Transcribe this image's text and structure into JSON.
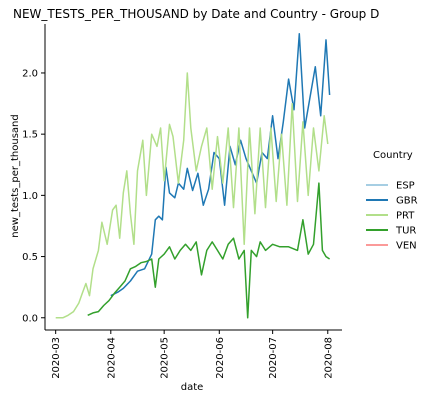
{
  "chart_data": {
    "type": "line",
    "title": "NEW_TESTS_PER_THOUSAND by Date and Country - Group D",
    "xlabel": "date",
    "ylabel": "new_tests_per_thousand",
    "ylim": [
      -0.1,
      2.4
    ],
    "y_ticks": [
      0.0,
      0.5,
      1.0,
      1.5,
      2.0
    ],
    "y_tick_labels": [
      "0.0",
      "0.5",
      "1.0",
      "1.5",
      "2.0"
    ],
    "xlim": [
      "2020-02-24",
      "2020-08-09"
    ],
    "x_ticks": [
      "2020-03-01",
      "2020-04-01",
      "2020-05-01",
      "2020-06-01",
      "2020-07-01",
      "2020-08-01"
    ],
    "x_tick_labels": [
      "2020-03",
      "2020-04",
      "2020-05",
      "2020-06",
      "2020-07",
      "2020-08"
    ],
    "grid": false,
    "legend": {
      "title": "Country",
      "placement": "right"
    },
    "series": [
      {
        "name": "ESP",
        "color": "#a6cee3",
        "points": []
      },
      {
        "name": "GBR",
        "color": "#1f78b4",
        "points": [
          [
            "2020-04-01",
            0.18
          ],
          [
            "2020-04-05",
            0.21
          ],
          [
            "2020-04-08",
            0.24
          ],
          [
            "2020-04-12",
            0.3
          ],
          [
            "2020-04-16",
            0.38
          ],
          [
            "2020-04-20",
            0.4
          ],
          [
            "2020-04-24",
            0.52
          ],
          [
            "2020-04-26",
            0.8
          ],
          [
            "2020-04-28",
            0.83
          ],
          [
            "2020-04-30",
            0.8
          ],
          [
            "2020-05-02",
            1.23
          ],
          [
            "2020-05-04",
            1.02
          ],
          [
            "2020-05-07",
            0.98
          ],
          [
            "2020-05-09",
            1.1
          ],
          [
            "2020-05-12",
            1.05
          ],
          [
            "2020-05-14",
            1.22
          ],
          [
            "2020-05-17",
            1.04
          ],
          [
            "2020-05-20",
            1.18
          ],
          [
            "2020-05-23",
            0.92
          ],
          [
            "2020-05-26",
            1.05
          ],
          [
            "2020-05-29",
            1.35
          ],
          [
            "2020-06-01",
            1.3
          ],
          [
            "2020-06-04",
            0.92
          ],
          [
            "2020-06-07",
            1.4
          ],
          [
            "2020-06-10",
            1.25
          ],
          [
            "2020-06-13",
            1.45
          ],
          [
            "2020-06-16",
            1.3
          ],
          [
            "2020-06-19",
            1.2
          ],
          [
            "2020-06-22",
            1.1
          ],
          [
            "2020-06-25",
            1.35
          ],
          [
            "2020-06-28",
            1.3
          ],
          [
            "2020-07-01",
            1.65
          ],
          [
            "2020-07-04",
            1.3
          ],
          [
            "2020-07-07",
            1.6
          ],
          [
            "2020-07-10",
            1.95
          ],
          [
            "2020-07-13",
            1.7
          ],
          [
            "2020-07-16",
            2.32
          ],
          [
            "2020-07-19",
            1.55
          ],
          [
            "2020-07-22",
            1.8
          ],
          [
            "2020-07-25",
            2.05
          ],
          [
            "2020-07-28",
            1.65
          ],
          [
            "2020-07-31",
            2.27
          ],
          [
            "2020-08-02",
            1.82
          ]
        ]
      },
      {
        "name": "PRT",
        "color": "#b2df8a",
        "points": [
          [
            "2020-03-01",
            0.0
          ],
          [
            "2020-03-05",
            0.0
          ],
          [
            "2020-03-08",
            0.02
          ],
          [
            "2020-03-11",
            0.05
          ],
          [
            "2020-03-14",
            0.12
          ],
          [
            "2020-03-16",
            0.2
          ],
          [
            "2020-03-18",
            0.28
          ],
          [
            "2020-03-20",
            0.18
          ],
          [
            "2020-03-22",
            0.4
          ],
          [
            "2020-03-25",
            0.55
          ],
          [
            "2020-03-27",
            0.78
          ],
          [
            "2020-03-30",
            0.6
          ],
          [
            "2020-04-02",
            0.88
          ],
          [
            "2020-04-04",
            0.92
          ],
          [
            "2020-04-06",
            0.65
          ],
          [
            "2020-04-08",
            1.02
          ],
          [
            "2020-04-10",
            1.2
          ],
          [
            "2020-04-12",
            0.85
          ],
          [
            "2020-04-14",
            0.6
          ],
          [
            "2020-04-16",
            1.2
          ],
          [
            "2020-04-19",
            1.45
          ],
          [
            "2020-04-21",
            1.0
          ],
          [
            "2020-04-24",
            1.5
          ],
          [
            "2020-04-27",
            1.4
          ],
          [
            "2020-04-29",
            1.55
          ],
          [
            "2020-05-01",
            1.12
          ],
          [
            "2020-05-04",
            1.58
          ],
          [
            "2020-05-06",
            1.48
          ],
          [
            "2020-05-09",
            1.1
          ],
          [
            "2020-05-12",
            1.45
          ],
          [
            "2020-05-14",
            2.0
          ],
          [
            "2020-05-16",
            1.55
          ],
          [
            "2020-05-19",
            1.2
          ],
          [
            "2020-05-22",
            1.4
          ],
          [
            "2020-05-25",
            1.55
          ],
          [
            "2020-05-28",
            1.05
          ],
          [
            "2020-05-31",
            1.48
          ],
          [
            "2020-06-03",
            1.1
          ],
          [
            "2020-06-06",
            1.55
          ],
          [
            "2020-06-09",
            0.9
          ],
          [
            "2020-06-12",
            1.55
          ],
          [
            "2020-06-15",
            0.6
          ],
          [
            "2020-06-18",
            1.55
          ],
          [
            "2020-06-21",
            0.85
          ],
          [
            "2020-06-24",
            1.55
          ],
          [
            "2020-06-27",
            0.9
          ],
          [
            "2020-06-30",
            1.55
          ],
          [
            "2020-07-03",
            0.95
          ],
          [
            "2020-07-06",
            1.5
          ],
          [
            "2020-07-09",
            0.92
          ],
          [
            "2020-07-12",
            1.75
          ],
          [
            "2020-07-15",
            0.95
          ],
          [
            "2020-07-18",
            1.6
          ],
          [
            "2020-07-21",
            1.0
          ],
          [
            "2020-07-24",
            1.55
          ],
          [
            "2020-07-27",
            1.2
          ],
          [
            "2020-07-30",
            1.65
          ],
          [
            "2020-08-01",
            1.42
          ]
        ]
      },
      {
        "name": "TUR",
        "color": "#33a02c",
        "points": [
          [
            "2020-03-19",
            0.02
          ],
          [
            "2020-03-22",
            0.04
          ],
          [
            "2020-03-25",
            0.05
          ],
          [
            "2020-03-28",
            0.1
          ],
          [
            "2020-03-31",
            0.14
          ],
          [
            "2020-04-03",
            0.2
          ],
          [
            "2020-04-06",
            0.25
          ],
          [
            "2020-04-09",
            0.3
          ],
          [
            "2020-04-12",
            0.4
          ],
          [
            "2020-04-15",
            0.42
          ],
          [
            "2020-04-18",
            0.45
          ],
          [
            "2020-04-21",
            0.46
          ],
          [
            "2020-04-24",
            0.48
          ],
          [
            "2020-04-26",
            0.25
          ],
          [
            "2020-04-28",
            0.48
          ],
          [
            "2020-05-01",
            0.52
          ],
          [
            "2020-05-04",
            0.58
          ],
          [
            "2020-05-07",
            0.48
          ],
          [
            "2020-05-10",
            0.55
          ],
          [
            "2020-05-13",
            0.6
          ],
          [
            "2020-05-16",
            0.55
          ],
          [
            "2020-05-19",
            0.62
          ],
          [
            "2020-05-22",
            0.35
          ],
          [
            "2020-05-25",
            0.55
          ],
          [
            "2020-05-28",
            0.62
          ],
          [
            "2020-05-31",
            0.55
          ],
          [
            "2020-06-03",
            0.48
          ],
          [
            "2020-06-06",
            0.6
          ],
          [
            "2020-06-09",
            0.65
          ],
          [
            "2020-06-12",
            0.48
          ],
          [
            "2020-06-15",
            0.55
          ],
          [
            "2020-06-17",
            0.0
          ],
          [
            "2020-06-19",
            0.55
          ],
          [
            "2020-06-22",
            0.5
          ],
          [
            "2020-06-24",
            0.62
          ],
          [
            "2020-06-27",
            0.55
          ],
          [
            "2020-07-01",
            0.6
          ],
          [
            "2020-07-05",
            0.58
          ],
          [
            "2020-07-10",
            0.58
          ],
          [
            "2020-07-15",
            0.55
          ],
          [
            "2020-07-18",
            0.8
          ],
          [
            "2020-07-21",
            0.52
          ],
          [
            "2020-07-24",
            0.6
          ],
          [
            "2020-07-27",
            1.1
          ],
          [
            "2020-07-29",
            0.55
          ],
          [
            "2020-07-31",
            0.5
          ],
          [
            "2020-08-02",
            0.48
          ]
        ]
      },
      {
        "name": "VEN",
        "color": "#fb9a99",
        "points": []
      }
    ]
  }
}
